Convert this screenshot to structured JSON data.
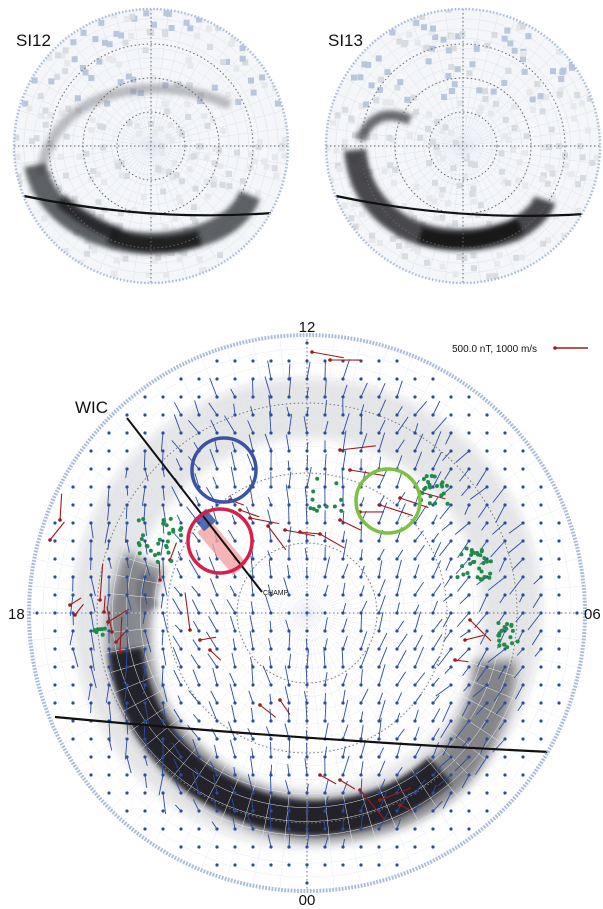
{
  "panels": {
    "si12": {
      "label": "SI12"
    },
    "si13": {
      "label": "SI13"
    }
  },
  "main": {
    "mlt_labels": {
      "top": "12",
      "left": "18",
      "right": "06",
      "bottom": "00"
    },
    "instrument_label": "WIC",
    "track_label": "CHAMP",
    "scale_label": "500.0 nT, 1000 m/s"
  },
  "colors": {
    "boundary_ring": "#a9bbd9",
    "dot": "#2b4d9e",
    "vector_blue": "#2b4d9e",
    "vector_red": "#9e1b1b",
    "green_dots": "#1f8a4a",
    "circle_blue": "#3a53a4",
    "circle_red": "#d61f4a",
    "circle_green": "#7cc142",
    "curve": "#111111"
  }
}
